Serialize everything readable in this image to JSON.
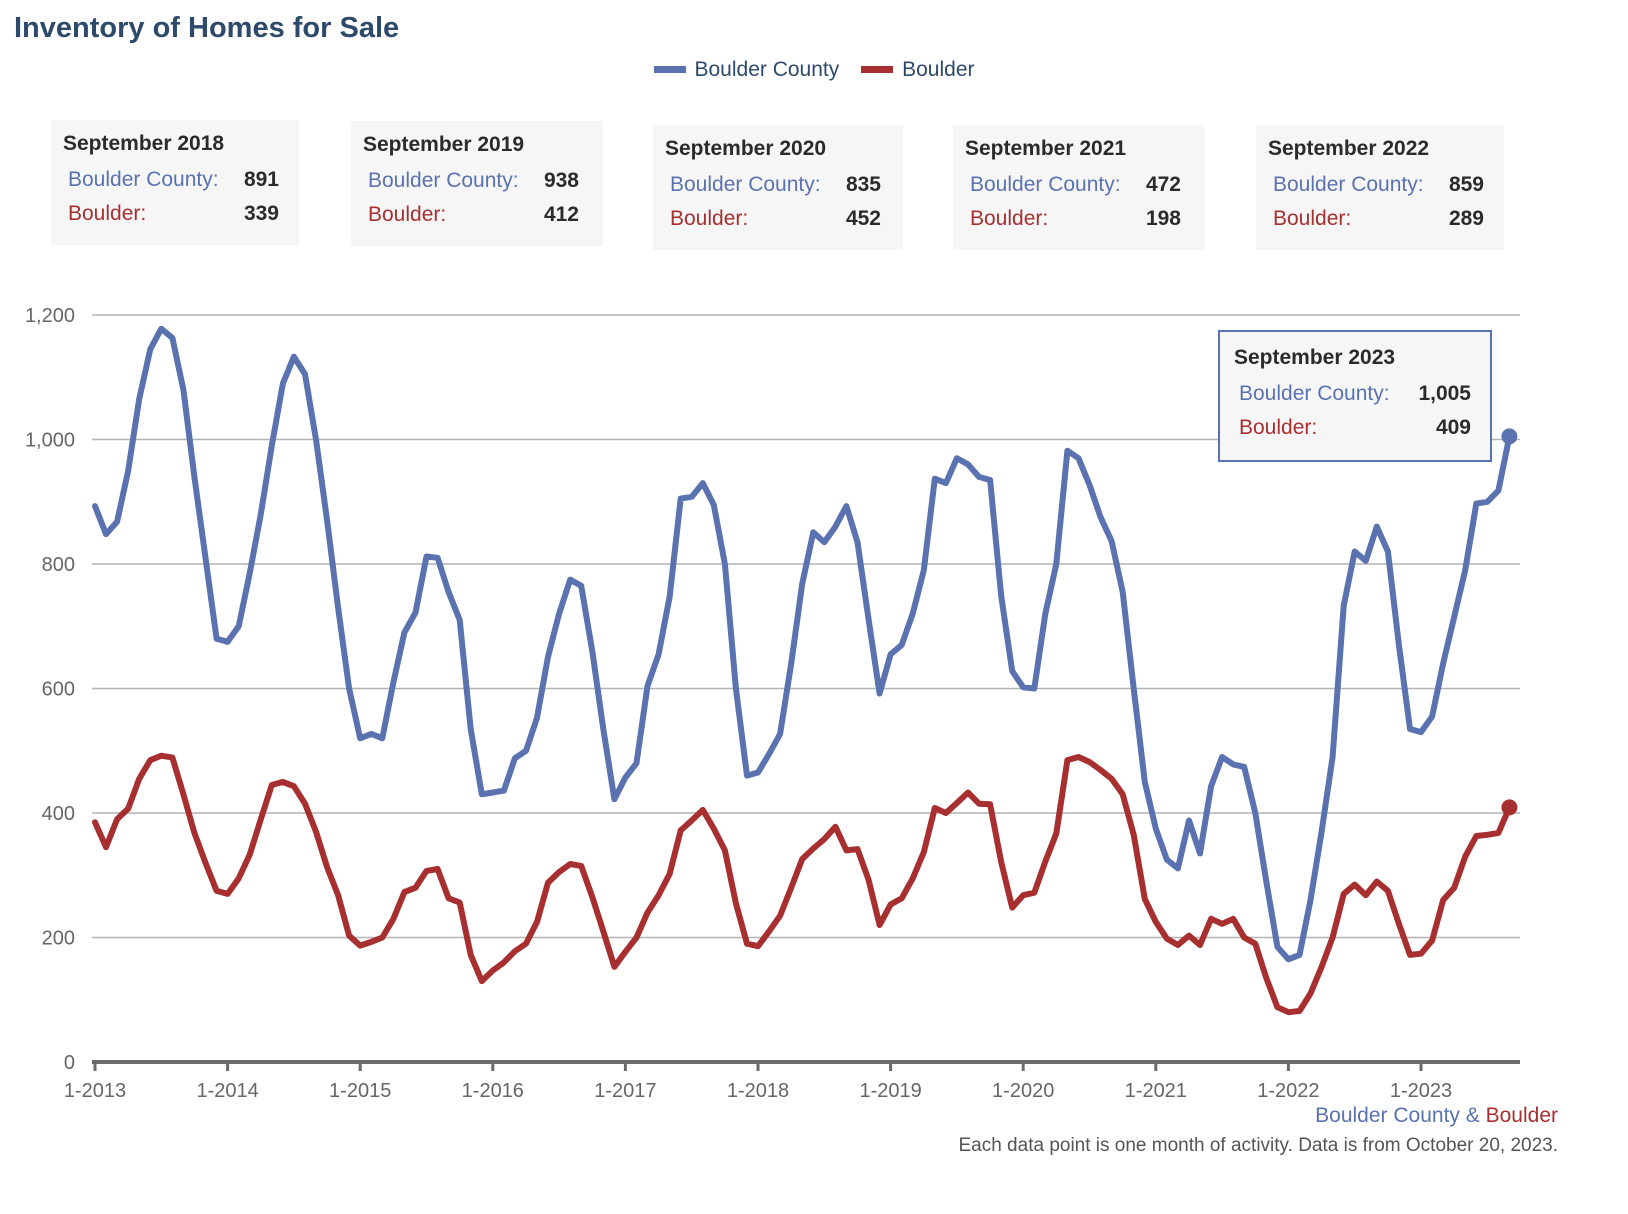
{
  "title": "Inventory of Homes for Sale",
  "legend": [
    {
      "name": "Boulder County",
      "color": "#5a72b0"
    },
    {
      "name": "Boulder",
      "color": "#a82f30"
    }
  ],
  "summary_boxes": [
    {
      "title": "September 2018",
      "bc_label": "Boulder County:",
      "bc_value": "891",
      "b_label": "Boulder:",
      "b_value": "339"
    },
    {
      "title": "September 2019",
      "bc_label": "Boulder County:",
      "bc_value": "938",
      "b_label": "Boulder:",
      "b_value": "412"
    },
    {
      "title": "September 2020",
      "bc_label": "Boulder County:",
      "bc_value": "835",
      "b_label": "Boulder:",
      "b_value": "452"
    },
    {
      "title": "September 2021",
      "bc_label": "Boulder County:",
      "bc_value": "472",
      "b_label": "Boulder:",
      "b_value": "198"
    },
    {
      "title": "September 2022",
      "bc_label": "Boulder County:",
      "bc_value": "859",
      "b_label": "Boulder:",
      "b_value": "289"
    }
  ],
  "hover_box": {
    "title": "September 2023",
    "bc_label": "Boulder County:",
    "bc_value": "1,005",
    "b_label": "Boulder:",
    "b_value": "409"
  },
  "footer": {
    "series_a": "Boulder County",
    "amp": " & ",
    "series_b": "Boulder",
    "note": "Each data point is one month of activity. Data is from October 20, 2023."
  },
  "chart_data": {
    "type": "line",
    "title": "Inventory of Homes for Sale",
    "xlabel": "",
    "ylabel": "",
    "x_start": "1-2013",
    "x_end": "9-2023",
    "x_ticks": [
      "1-2013",
      "1-2014",
      "1-2015",
      "1-2016",
      "1-2017",
      "1-2018",
      "1-2019",
      "1-2020",
      "1-2021",
      "1-2022",
      "1-2023"
    ],
    "y_ticks": [
      0,
      200,
      400,
      600,
      800,
      1000,
      1200
    ],
    "y_tick_labels": [
      "0",
      "200",
      "400",
      "600",
      "800",
      "1,000",
      "1,200"
    ],
    "ylim": [
      0,
      1200
    ],
    "grid": true,
    "legend_position": "top-center",
    "series": [
      {
        "name": "Boulder County",
        "color": "#5a72b0",
        "values": [
          893,
          848,
          868,
          950,
          1065,
          1145,
          1178,
          1163,
          1080,
          940,
          810,
          680,
          675,
          700,
          785,
          880,
          990,
          1090,
          1133,
          1105,
          1000,
          870,
          730,
          600,
          520,
          527,
          520,
          610,
          690,
          722,
          812,
          810,
          755,
          710,
          535,
          430,
          433,
          436,
          488,
          500,
          553,
          651,
          720,
          775,
          765,
          660,
          535,
          422,
          457,
          480,
          604,
          655,
          747,
          905,
          908,
          930,
          895,
          800,
          600,
          460,
          465,
          495,
          527,
          640,
          768,
          851,
          835,
          860,
          893,
          835,
          712,
          592,
          655,
          670,
          720,
          790,
          937,
          930,
          970,
          960,
          940,
          935,
          750,
          628,
          602,
          600,
          720,
          800,
          982,
          970,
          927,
          875,
          837,
          755,
          600,
          450,
          375,
          325,
          311,
          388,
          335,
          443,
          490,
          478,
          474,
          400,
          290,
          185,
          165,
          172,
          260,
          370,
          490,
          733,
          820,
          805,
          860,
          820,
          670,
          535,
          530,
          555,
          640,
          715,
          790,
          897,
          900,
          918,
          1005
        ]
      },
      {
        "name": "Boulder",
        "color": "#a82f30",
        "values": [
          385,
          345,
          390,
          407,
          455,
          485,
          492,
          489,
          430,
          368,
          320,
          275,
          270,
          295,
          333,
          390,
          445,
          450,
          443,
          415,
          370,
          313,
          268,
          203,
          187,
          193,
          200,
          230,
          273,
          280,
          307,
          310,
          263,
          256,
          172,
          130,
          147,
          160,
          178,
          190,
          225,
          288,
          305,
          318,
          315,
          265,
          210,
          153,
          177,
          200,
          240,
          268,
          302,
          372,
          388,
          405,
          375,
          340,
          255,
          190,
          186,
          210,
          235,
          280,
          326,
          343,
          358,
          378,
          340,
          342,
          293,
          220,
          253,
          263,
          295,
          337,
          408,
          400,
          416,
          433,
          415,
          414,
          322,
          248,
          268,
          272,
          322,
          367,
          485,
          490,
          482,
          469,
          455,
          430,
          365,
          262,
          225,
          198,
          188,
          203,
          188,
          230,
          222,
          230,
          200,
          190,
          135,
          88,
          80,
          82,
          110,
          153,
          200,
          270,
          285,
          268,
          290,
          275,
          222,
          172,
          174,
          195,
          260,
          280,
          330,
          363,
          365,
          368,
          409
        ]
      }
    ],
    "annotations": [
      {
        "label": "September 2018",
        "Boulder County": 891,
        "Boulder": 339
      },
      {
        "label": "September 2019",
        "Boulder County": 938,
        "Boulder": 412
      },
      {
        "label": "September 2020",
        "Boulder County": 835,
        "Boulder": 452
      },
      {
        "label": "September 2021",
        "Boulder County": 472,
        "Boulder": 198
      },
      {
        "label": "September 2022",
        "Boulder County": 859,
        "Boulder": 289
      },
      {
        "label": "September 2023",
        "Boulder County": 1005,
        "Boulder": 409
      }
    ]
  }
}
